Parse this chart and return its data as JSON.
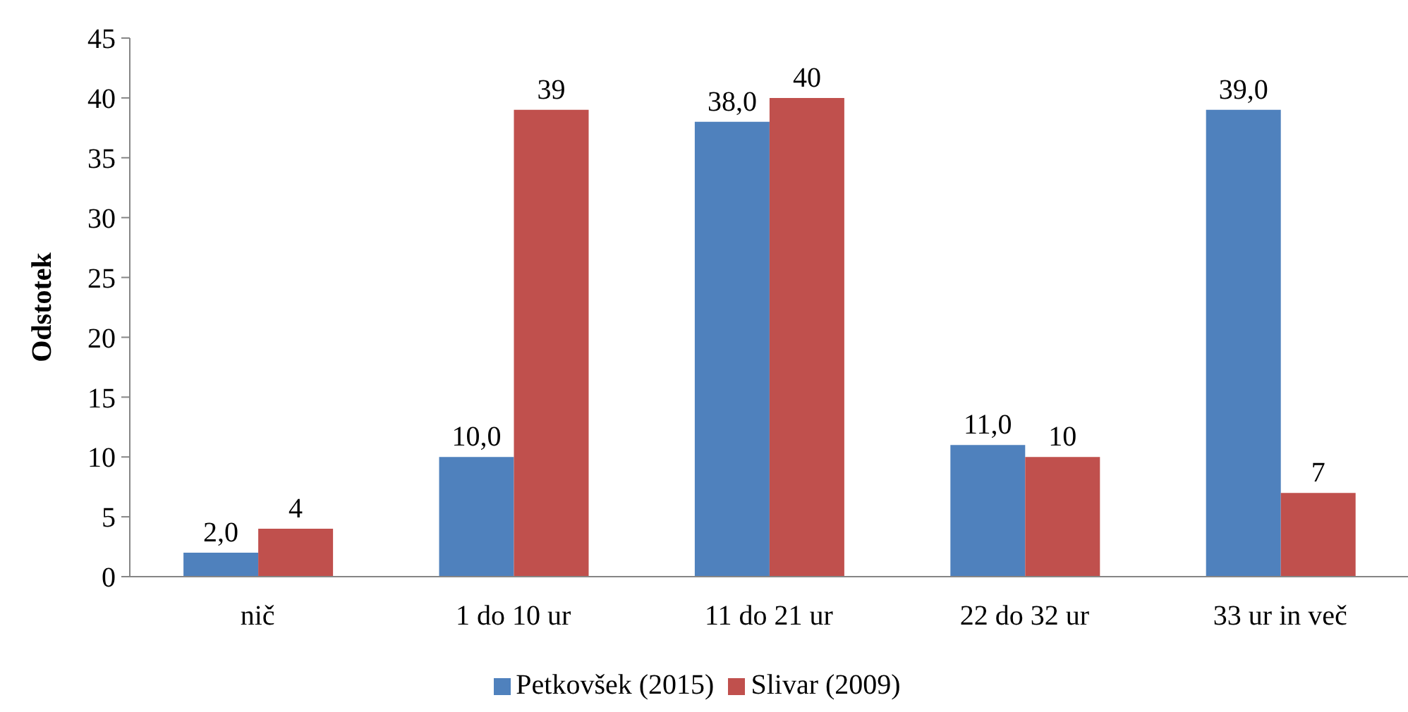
{
  "chart_data": {
    "type": "bar",
    "ylabel": "Odstotek",
    "categories": [
      "nič",
      "1 do 10 ur",
      "11 do 21 ur",
      "22 do 32 ur",
      "33 ur in več"
    ],
    "series": [
      {
        "name": "Petkovšek (2015)",
        "color": "#4f81bd",
        "values": [
          2,
          10,
          38,
          11,
          39
        ],
        "value_labels": [
          "2,0",
          "10,0",
          "38,0",
          "11,0",
          "39,0"
        ]
      },
      {
        "name": "Slivar (2009)",
        "color": "#c0504d",
        "values": [
          4,
          39,
          40,
          10,
          7
        ],
        "value_labels": [
          "4",
          "39",
          "40",
          "10",
          "7"
        ]
      }
    ],
    "ylim": [
      0,
      45
    ],
    "yticks": [
      0,
      5,
      10,
      15,
      20,
      25,
      30,
      35,
      40,
      45
    ],
    "legend": "bottom"
  }
}
